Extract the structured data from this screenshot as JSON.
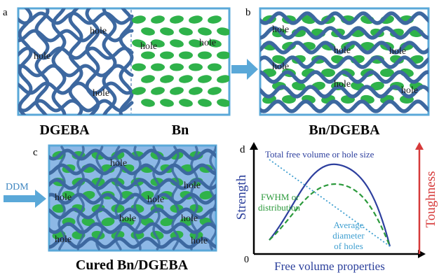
{
  "panels": {
    "a": {
      "label": "a",
      "captions": [
        "DGEBA",
        "Bn"
      ],
      "hole_labels": [
        "hole",
        "hole",
        "hole",
        "hole",
        "hole"
      ]
    },
    "b": {
      "label": "b",
      "caption": "Bn/DGEBA",
      "hole_labels": [
        "hole",
        "hole",
        "hole",
        "hole",
        "hole",
        "hole"
      ]
    },
    "c": {
      "label": "c",
      "caption": "Cured Bn/DGEBA",
      "arrow_label": "DDM",
      "hole_labels": [
        "hole",
        "hole",
        "hole",
        "hole",
        "hole",
        "hole",
        "hole",
        "hole"
      ]
    },
    "d": {
      "label": "d",
      "y_label_left": "Strength",
      "y_label_right": "Toughness",
      "x_label": "Free volume properties",
      "origin_label": "0",
      "curve_labels": {
        "total": "Total free volume or hole size",
        "fwhm_line1": "FWHM or",
        "fwhm_line2": "distribution",
        "avg_line1": "Average",
        "avg_line2": "diameter",
        "avg_line3": "of holes"
      }
    }
  },
  "colors": {
    "network": "#3d68a0",
    "particle": "#2fb24a",
    "frame": "#5aa8d8",
    "panel_c_bg": "#8db8e6",
    "arrow": "#5aa8d8",
    "strength": "#2b3f9b",
    "toughness": "#d63a3a",
    "curve_total": "#2d3f9e",
    "curve_fwhm": "#2c9a3c",
    "curve_avg": "#3f9fd0"
  }
}
